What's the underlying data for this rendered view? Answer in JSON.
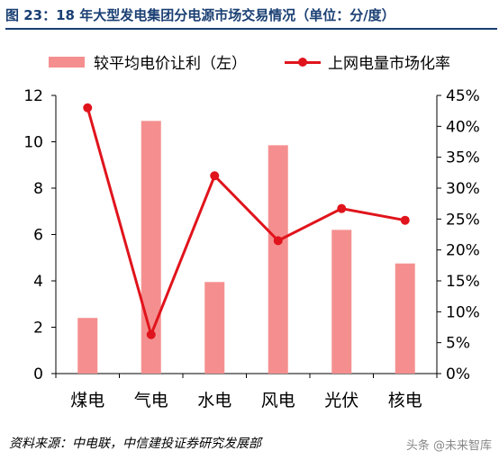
{
  "title": "图 23：18 年大型发电集团分电源市场交易情况（单位：分/度）",
  "source": "资料来源：中电联，中信建投证券研究发展部",
  "watermark": "头条 @未来智库",
  "colors": {
    "bar": "#f58f8f",
    "line": "#e0141c",
    "title": "#1a3f73"
  },
  "chart_data": {
    "type": "bar+line",
    "categories": [
      "煤电",
      "气电",
      "水电",
      "风电",
      "光伏",
      "核电"
    ],
    "series": [
      {
        "name": "较平均电价让利（左）",
        "type": "bar",
        "axis": "left",
        "values": [
          2.4,
          10.9,
          3.95,
          9.85,
          6.2,
          4.75
        ]
      },
      {
        "name": "上网电量市场化率",
        "type": "line",
        "axis": "right",
        "values": [
          43.0,
          6.3,
          32.0,
          21.5,
          26.7,
          24.8
        ]
      }
    ],
    "y_left": {
      "min": 0,
      "max": 12,
      "ticks": [
        "0",
        "2",
        "4",
        "6",
        "8",
        "10",
        "12"
      ]
    },
    "y_right": {
      "min": 0,
      "max": 45,
      "ticks": [
        "0%",
        "5%",
        "10%",
        "15%",
        "20%",
        "25%",
        "30%",
        "35%",
        "40%",
        "45%"
      ]
    },
    "legend_position": "top",
    "grid": false
  }
}
